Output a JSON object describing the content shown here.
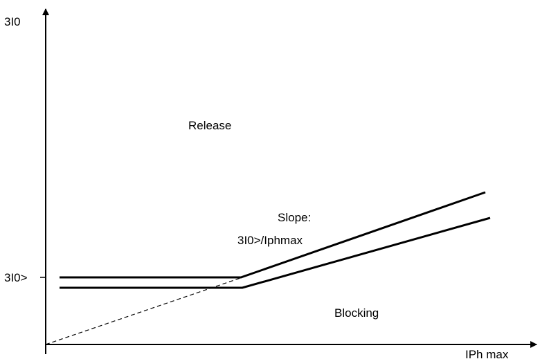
{
  "diagram": {
    "y_axis_label": "3I0",
    "x_axis_label": "IPh max",
    "threshold_label": "3I0>",
    "region_upper_label": "Release",
    "region_lower_label": "Blocking",
    "slope_label_line1": "Slope:",
    "slope_label_line2": "3I0>/Iphmax"
  },
  "colors": {
    "stroke": "#000000",
    "background": "#ffffff"
  }
}
